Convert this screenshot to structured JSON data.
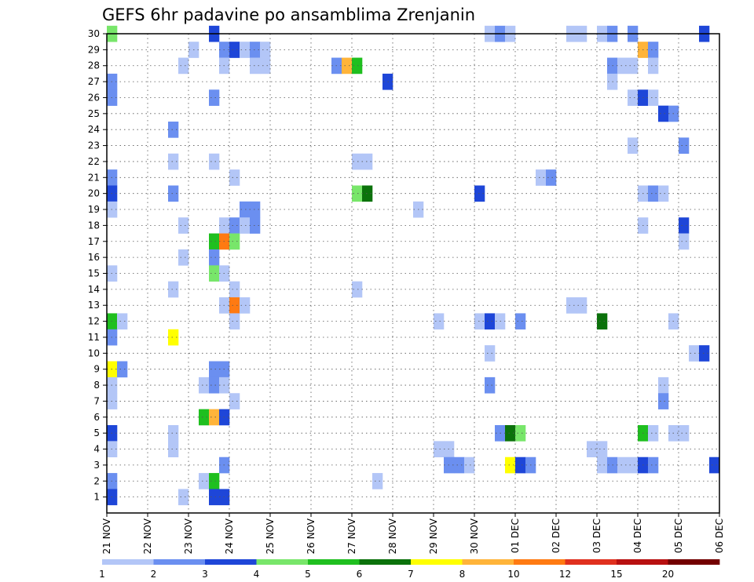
{
  "chart_data": {
    "type": "heatmap",
    "title": "GEFS 6hr padavine po ansamblima Zrenjanin",
    "xlabel": "",
    "ylabel": "",
    "steps_per_day": 4,
    "start_step": 0,
    "end_step": 60,
    "members": [
      0,
      30
    ],
    "x_ticks": [
      "21 NOV",
      "22 NOV",
      "23 NOV",
      "24 NOV",
      "25 NOV",
      "26 NOV",
      "27 NOV",
      "28 NOV",
      "29 NOV",
      "30 NOV",
      "01 DEC",
      "02 DEC",
      "03 DEC",
      "04 DEC",
      "05 DEC",
      "06 DEC"
    ],
    "y_ticks": [
      1,
      2,
      3,
      4,
      5,
      6,
      7,
      8,
      9,
      10,
      11,
      12,
      13,
      14,
      15,
      16,
      17,
      18,
      19,
      20,
      21,
      22,
      23,
      24,
      25,
      26,
      27,
      28,
      29,
      30
    ],
    "grid": true,
    "legend_placement": "bottom",
    "colorbar": {
      "colors": [
        "#b3c6f7",
        "#6b8ff0",
        "#1e46d8",
        "#78e66a",
        "#1fbf1f",
        "#0b720b",
        "#ffff00",
        "#ffb43a",
        "#ff7a12",
        "#e0301e",
        "#b81010",
        "#730000"
      ],
      "labels": [
        "1",
        "2",
        "3",
        "4",
        "5",
        "6",
        "7",
        "8",
        "10",
        "12",
        "15",
        "20"
      ]
    },
    "cells": [
      {
        "m": 30,
        "s": 0,
        "v": 4.5
      },
      {
        "m": 30,
        "s": 10,
        "v": 3.5
      },
      {
        "m": 30,
        "s": 37,
        "v": 1.5
      },
      {
        "m": 30,
        "s": 38,
        "v": 2.5
      },
      {
        "m": 30,
        "s": 39,
        "v": 1.5
      },
      {
        "m": 30,
        "s": 45,
        "v": 1.5
      },
      {
        "m": 30,
        "s": 46,
        "v": 1.5
      },
      {
        "m": 30,
        "s": 48,
        "v": 1.5
      },
      {
        "m": 30,
        "s": 49,
        "v": 2.5
      },
      {
        "m": 30,
        "s": 51,
        "v": 2.5
      },
      {
        "m": 30,
        "s": 58,
        "v": 3.5
      },
      {
        "m": 29,
        "s": 8,
        "v": 1.5
      },
      {
        "m": 29,
        "s": 11,
        "v": 2.5
      },
      {
        "m": 29,
        "s": 12,
        "v": 3.5
      },
      {
        "m": 29,
        "s": 13,
        "v": 1.5
      },
      {
        "m": 29,
        "s": 14,
        "v": 2.5
      },
      {
        "m": 29,
        "s": 15,
        "v": 1.5
      },
      {
        "m": 29,
        "s": 52,
        "v": 9
      },
      {
        "m": 29,
        "s": 53,
        "v": 2.5
      },
      {
        "m": 28,
        "s": 7,
        "v": 1.5
      },
      {
        "m": 28,
        "s": 11,
        "v": 1.5
      },
      {
        "m": 28,
        "s": 14,
        "v": 1.5
      },
      {
        "m": 28,
        "s": 15,
        "v": 1.5
      },
      {
        "m": 28,
        "s": 22,
        "v": 2.5
      },
      {
        "m": 28,
        "s": 23,
        "v": 9
      },
      {
        "m": 28,
        "s": 24,
        "v": 5.5
      },
      {
        "m": 28,
        "s": 49,
        "v": 2.5
      },
      {
        "m": 28,
        "s": 50,
        "v": 1.5
      },
      {
        "m": 28,
        "s": 51,
        "v": 1.5
      },
      {
        "m": 28,
        "s": 53,
        "v": 1.5
      },
      {
        "m": 27,
        "s": 0,
        "v": 2.5
      },
      {
        "m": 27,
        "s": 27,
        "v": 3.5
      },
      {
        "m": 27,
        "s": 49,
        "v": 1.5
      },
      {
        "m": 26,
        "s": 0,
        "v": 2.5
      },
      {
        "m": 26,
        "s": 10,
        "v": 2.5
      },
      {
        "m": 26,
        "s": 51,
        "v": 1.5
      },
      {
        "m": 26,
        "s": 52,
        "v": 3.5
      },
      {
        "m": 26,
        "s": 53,
        "v": 1.5
      },
      {
        "m": 25,
        "s": 54,
        "v": 3.5
      },
      {
        "m": 25,
        "s": 55,
        "v": 2.5
      },
      {
        "m": 24,
        "s": 6,
        "v": 2.5
      },
      {
        "m": 23,
        "s": 51,
        "v": 1.5
      },
      {
        "m": 23,
        "s": 56,
        "v": 2.5
      },
      {
        "m": 22,
        "s": 6,
        "v": 1.5
      },
      {
        "m": 22,
        "s": 10,
        "v": 1.5
      },
      {
        "m": 22,
        "s": 24,
        "v": 1.5
      },
      {
        "m": 22,
        "s": 25,
        "v": 1.5
      },
      {
        "m": 21,
        "s": 0,
        "v": 2.5
      },
      {
        "m": 21,
        "s": 12,
        "v": 1.5
      },
      {
        "m": 21,
        "s": 42,
        "v": 1.5
      },
      {
        "m": 21,
        "s": 43,
        "v": 2.5
      },
      {
        "m": 20,
        "s": 0,
        "v": 3.5
      },
      {
        "m": 20,
        "s": 6,
        "v": 2.5
      },
      {
        "m": 20,
        "s": 24,
        "v": 4.5
      },
      {
        "m": 20,
        "s": 25,
        "v": 6.5
      },
      {
        "m": 20,
        "s": 36,
        "v": 3.5
      },
      {
        "m": 20,
        "s": 52,
        "v": 1.5
      },
      {
        "m": 20,
        "s": 53,
        "v": 2.5
      },
      {
        "m": 20,
        "s": 54,
        "v": 1.5
      },
      {
        "m": 19,
        "s": 0,
        "v": 1.5
      },
      {
        "m": 19,
        "s": 13,
        "v": 2.5
      },
      {
        "m": 19,
        "s": 14,
        "v": 2.5
      },
      {
        "m": 19,
        "s": 30,
        "v": 1.5
      },
      {
        "m": 18,
        "s": 7,
        "v": 1.5
      },
      {
        "m": 18,
        "s": 11,
        "v": 1.5
      },
      {
        "m": 18,
        "s": 12,
        "v": 2.5
      },
      {
        "m": 18,
        "s": 13,
        "v": 1.5
      },
      {
        "m": 18,
        "s": 14,
        "v": 2.5
      },
      {
        "m": 18,
        "s": 52,
        "v": 1.5
      },
      {
        "m": 18,
        "s": 56,
        "v": 3.5
      },
      {
        "m": 17,
        "s": 10,
        "v": 5.5
      },
      {
        "m": 17,
        "s": 11,
        "v": 11
      },
      {
        "m": 17,
        "s": 12,
        "v": 4.5
      },
      {
        "m": 17,
        "s": 56,
        "v": 1.5
      },
      {
        "m": 16,
        "s": 10,
        "v": 2.5
      },
      {
        "m": 16,
        "s": 7,
        "v": 1.5
      },
      {
        "m": 15,
        "s": 0,
        "v": 1.5
      },
      {
        "m": 15,
        "s": 10,
        "v": 4.5
      },
      {
        "m": 15,
        "s": 11,
        "v": 1.5
      },
      {
        "m": 14,
        "s": 6,
        "v": 1.5
      },
      {
        "m": 14,
        "s": 12,
        "v": 1.5
      },
      {
        "m": 14,
        "s": 24,
        "v": 1.5
      },
      {
        "m": 13,
        "s": 11,
        "v": 1.5
      },
      {
        "m": 13,
        "s": 12,
        "v": 11
      },
      {
        "m": 13,
        "s": 13,
        "v": 1.5
      },
      {
        "m": 13,
        "s": 45,
        "v": 1.5
      },
      {
        "m": 13,
        "s": 46,
        "v": 1.5
      },
      {
        "m": 12,
        "s": 0,
        "v": 5.5
      },
      {
        "m": 12,
        "s": 1,
        "v": 1.5
      },
      {
        "m": 12,
        "s": 12,
        "v": 1.5
      },
      {
        "m": 12,
        "s": 32,
        "v": 1.5
      },
      {
        "m": 12,
        "s": 36,
        "v": 1.5
      },
      {
        "m": 12,
        "s": 37,
        "v": 3.5
      },
      {
        "m": 12,
        "s": 38,
        "v": 1.5
      },
      {
        "m": 12,
        "s": 40,
        "v": 2.5
      },
      {
        "m": 12,
        "s": 48,
        "v": 6.5
      },
      {
        "m": 12,
        "s": 55,
        "v": 1.5
      },
      {
        "m": 11,
        "s": 0,
        "v": 2.5
      },
      {
        "m": 11,
        "s": 6,
        "v": 7.5
      },
      {
        "m": 10,
        "s": 37,
        "v": 1.5
      },
      {
        "m": 10,
        "s": 57,
        "v": 1.5
      },
      {
        "m": 10,
        "s": 58,
        "v": 3.5
      },
      {
        "m": 9,
        "s": 0,
        "v": 7.5
      },
      {
        "m": 9,
        "s": 1,
        "v": 2.5
      },
      {
        "m": 9,
        "s": 10,
        "v": 2.5
      },
      {
        "m": 9,
        "s": 11,
        "v": 2.5
      },
      {
        "m": 8,
        "s": 0,
        "v": 1.5
      },
      {
        "m": 8,
        "s": 9,
        "v": 1.5
      },
      {
        "m": 8,
        "s": 10,
        "v": 2.5
      },
      {
        "m": 8,
        "s": 11,
        "v": 1.5
      },
      {
        "m": 8,
        "s": 37,
        "v": 2.5
      },
      {
        "m": 8,
        "s": 54,
        "v": 1.5
      },
      {
        "m": 7,
        "s": 0,
        "v": 1.5
      },
      {
        "m": 7,
        "s": 12,
        "v": 1.5
      },
      {
        "m": 7,
        "s": 54,
        "v": 2.5
      },
      {
        "m": 6,
        "s": 9,
        "v": 5.5
      },
      {
        "m": 6,
        "s": 10,
        "v": 9
      },
      {
        "m": 6,
        "s": 11,
        "v": 3.5
      },
      {
        "m": 5,
        "s": 0,
        "v": 3.5
      },
      {
        "m": 5,
        "s": 6,
        "v": 1.5
      },
      {
        "m": 5,
        "s": 38,
        "v": 2.5
      },
      {
        "m": 5,
        "s": 39,
        "v": 6.5
      },
      {
        "m": 5,
        "s": 40,
        "v": 4.5
      },
      {
        "m": 5,
        "s": 52,
        "v": 5.5
      },
      {
        "m": 5,
        "s": 53,
        "v": 1.5
      },
      {
        "m": 5,
        "s": 55,
        "v": 1.5
      },
      {
        "m": 5,
        "s": 56,
        "v": 1.5
      },
      {
        "m": 4,
        "s": 0,
        "v": 1.5
      },
      {
        "m": 4,
        "s": 6,
        "v": 1.5
      },
      {
        "m": 4,
        "s": 32,
        "v": 1.5
      },
      {
        "m": 4,
        "s": 33,
        "v": 1.5
      },
      {
        "m": 4,
        "s": 47,
        "v": 1.5
      },
      {
        "m": 4,
        "s": 48,
        "v": 1.5
      },
      {
        "m": 3,
        "s": 11,
        "v": 2.5
      },
      {
        "m": 3,
        "s": 33,
        "v": 2.5
      },
      {
        "m": 3,
        "s": 34,
        "v": 2.5
      },
      {
        "m": 3,
        "s": 35,
        "v": 1.5
      },
      {
        "m": 3,
        "s": 39,
        "v": 7.5
      },
      {
        "m": 3,
        "s": 40,
        "v": 3.5
      },
      {
        "m": 3,
        "s": 41,
        "v": 2.5
      },
      {
        "m": 3,
        "s": 48,
        "v": 1.5
      },
      {
        "m": 3,
        "s": 49,
        "v": 2.5
      },
      {
        "m": 3,
        "s": 50,
        "v": 1.5
      },
      {
        "m": 3,
        "s": 51,
        "v": 1.5
      },
      {
        "m": 3,
        "s": 52,
        "v": 3.5
      },
      {
        "m": 3,
        "s": 53,
        "v": 2.5
      },
      {
        "m": 3,
        "s": 59,
        "v": 3.5
      },
      {
        "m": 2,
        "s": 0,
        "v": 2.5
      },
      {
        "m": 2,
        "s": 9,
        "v": 1.5
      },
      {
        "m": 2,
        "s": 10,
        "v": 5.5
      },
      {
        "m": 2,
        "s": 26,
        "v": 1.5
      },
      {
        "m": 1,
        "s": 0,
        "v": 3.5
      },
      {
        "m": 1,
        "s": 7,
        "v": 1.5
      },
      {
        "m": 1,
        "s": 10,
        "v": 3.5
      },
      {
        "m": 1,
        "s": 11,
        "v": 3.5
      }
    ]
  }
}
